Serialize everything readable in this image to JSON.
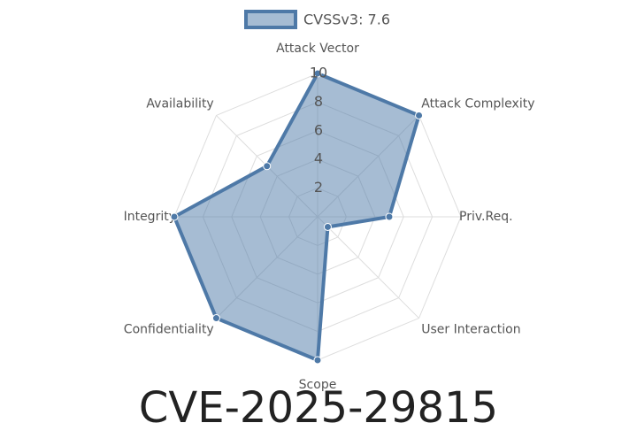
{
  "chart_data": {
    "type": "radar",
    "title": "CVE-2025-29815",
    "categories": [
      "Attack Vector",
      "Attack Complexity",
      "Priv.Req.",
      "User Interaction",
      "Scope",
      "Confidentiality",
      "Integrity",
      "Availability"
    ],
    "series": [
      {
        "name": "CVSSv3: 7.6",
        "color": "#4e79a7",
        "values": [
          10,
          10,
          5,
          1,
          10,
          10,
          10,
          5
        ]
      }
    ],
    "rlim": [
      0,
      10
    ],
    "rticks": [
      2,
      4,
      6,
      8,
      10
    ],
    "grid": true,
    "legend": "top"
  }
}
